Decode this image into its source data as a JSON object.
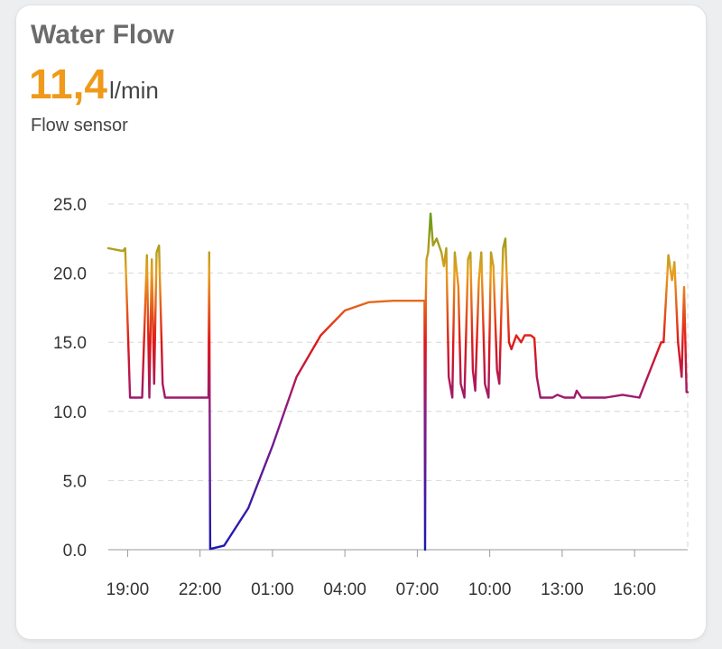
{
  "card": {
    "title": "Water Flow",
    "state_value": "11,4",
    "unit": "l/min",
    "subtitle": "Flow sensor"
  },
  "chart_data": {
    "type": "line",
    "x_unit": "time of day (hours)",
    "xlim": [
      18.2,
      42.2
    ],
    "ylim": [
      0,
      25
    ],
    "y_ticks": [
      0,
      5,
      10,
      15,
      20,
      25
    ],
    "y_tick_labels": [
      "0.0",
      "5.0",
      "10.0",
      "15.0",
      "20.0",
      "25.0"
    ],
    "x_ticks": [
      19,
      22,
      25,
      28,
      31,
      34,
      37,
      40
    ],
    "x_tick_labels": [
      "19:00",
      "22:00",
      "01:00",
      "04:00",
      "07:00",
      "10:00",
      "13:00",
      "16:00"
    ],
    "grid": true,
    "color_scale": {
      "stops": [
        {
          "value": 0,
          "color": "#1a1ab4"
        },
        {
          "value": 10,
          "color": "#8c1a82"
        },
        {
          "value": 15,
          "color": "#e01818"
        },
        {
          "value": 20,
          "color": "#e8a020"
        },
        {
          "value": 24,
          "color": "#6a9a1a"
        }
      ]
    },
    "series": [
      {
        "x": [
          18.2,
          18.8,
          18.9,
          19.0,
          19.1,
          19.6,
          19.8,
          19.9,
          20.0,
          20.1,
          20.2,
          20.3,
          20.45,
          20.55,
          20.6,
          21.2,
          22.0,
          22.35,
          22.38,
          22.4,
          22.42,
          23.0,
          24.0,
          25.0,
          26.0,
          27.0,
          28.0,
          29.0,
          30.0,
          31.0,
          31.3,
          31.32,
          31.35,
          31.38,
          31.45,
          31.55,
          31.65,
          31.8,
          32.0,
          32.1,
          32.2,
          32.3,
          32.45,
          32.55,
          32.7,
          32.8,
          32.95,
          33.1,
          33.2,
          33.3,
          33.4,
          33.55,
          33.65,
          33.8,
          33.95,
          34.05,
          34.15,
          34.3,
          34.4,
          34.55,
          34.65,
          34.8,
          34.9,
          35.1,
          35.3,
          35.45,
          35.55,
          35.7,
          35.85,
          35.95,
          36.1,
          36.3,
          36.6,
          36.8,
          37.1,
          37.5,
          37.6,
          37.8,
          38.2,
          38.8,
          39.5,
          40.2,
          41.1,
          41.2,
          41.4,
          41.55,
          41.65,
          41.8,
          41.95,
          42.05,
          42.15,
          42.2
        ],
        "y": [
          21.8,
          21.6,
          21.8,
          16.5,
          11.0,
          11.0,
          21.3,
          11.0,
          21.0,
          12.0,
          21.5,
          22.0,
          12.0,
          11.0,
          11.0,
          11.0,
          11.0,
          11.0,
          21.5,
          11.0,
          0.05,
          0.3,
          3.0,
          7.5,
          12.5,
          15.5,
          17.3,
          17.9,
          18.0,
          18.0,
          18.0,
          0.0,
          18.0,
          21.0,
          21.5,
          24.3,
          22.0,
          22.5,
          21.5,
          20.5,
          21.8,
          12.5,
          11.0,
          21.5,
          19.0,
          12.0,
          11.0,
          21.0,
          21.5,
          13.0,
          11.5,
          19.5,
          21.5,
          12.0,
          11.0,
          21.5,
          20.5,
          13.0,
          12.0,
          21.8,
          22.5,
          15.0,
          14.5,
          15.5,
          15.0,
          15.5,
          15.5,
          15.5,
          15.3,
          12.5,
          11.0,
          11.0,
          11.0,
          11.2,
          11.0,
          11.0,
          11.5,
          11.0,
          11.0,
          11.0,
          11.2,
          11.0,
          15.0,
          15.0,
          21.3,
          19.5,
          20.8,
          15.0,
          12.5,
          19.0,
          11.4,
          11.4
        ]
      }
    ]
  }
}
